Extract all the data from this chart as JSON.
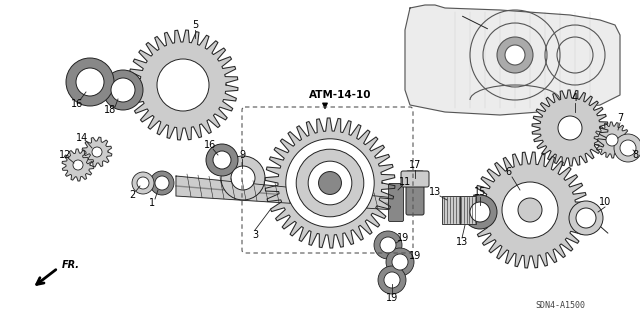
{
  "bg_color": "#ffffff",
  "diagram_code": "ATM-14-10",
  "part_code": "SDN4-A1500",
  "fr_label": "FR.",
  "line_color": "#222222",
  "gray_light": "#cccccc",
  "gray_mid": "#888888",
  "gray_dark": "#444444"
}
